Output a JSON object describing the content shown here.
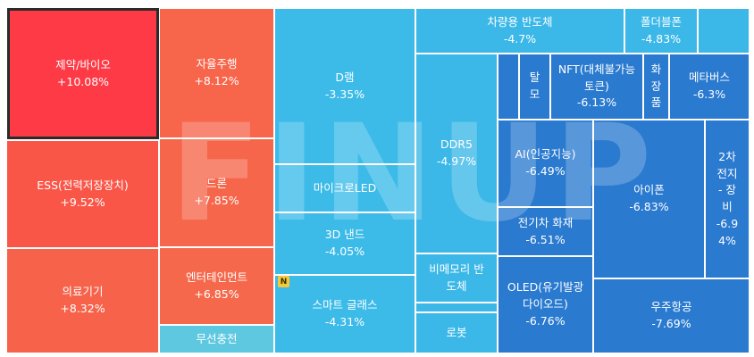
{
  "chart_data": {
    "type": "treemap",
    "items": [
      {
        "name": "제약/바이오",
        "change": "+10.08%",
        "value": 10.08,
        "color": "#fe3a46",
        "selected": true
      },
      {
        "name": "ESS(전력저장장치)",
        "change": "+9.52%",
        "value": 9.52,
        "color": "#fa5648"
      },
      {
        "name": "의료기기",
        "change": "+8.32%",
        "value": 8.32,
        "color": "#f7624a"
      },
      {
        "name": "자율주행",
        "change": "+8.12%",
        "value": 8.12,
        "color": "#f7654b"
      },
      {
        "name": "드론",
        "change": "+7.85%",
        "value": 7.85,
        "color": "#f6664b"
      },
      {
        "name": "엔터테인먼트",
        "change": "+6.85%",
        "value": 6.85,
        "color": "#f5684c"
      },
      {
        "name": "무선충전",
        "change": "",
        "color": "#5ec8e0"
      },
      {
        "name": "D램",
        "change": "-3.35%",
        "value": -3.35,
        "color": "#3cbbe9"
      },
      {
        "name": "마이크로LED",
        "change": "",
        "color": "#3cbbe9"
      },
      {
        "name": "3D 낸드",
        "change": "-4.05%",
        "value": -4.05,
        "color": "#3cbbe9"
      },
      {
        "name": "스마트 글래스",
        "change": "-4.31%",
        "value": -4.31,
        "color": "#3cbbe9"
      },
      {
        "name": "차량용 반도체",
        "change": "-4.7%",
        "value": -4.7,
        "color": "#3cb8e8"
      },
      {
        "name": "폴더블폰",
        "change": "-4.83%",
        "value": -4.83,
        "color": "#3cb8e8"
      },
      {
        "name": "",
        "change": "",
        "color": "#3cb8e8"
      },
      {
        "name": "DDR5",
        "change": "-4.97%",
        "value": -4.97,
        "color": "#3cb8e8"
      },
      {
        "name": "비메모리 반도체",
        "change": "",
        "color": "#3cb8e8"
      },
      {
        "name": "",
        "change": "",
        "color": "#3cb8e8"
      },
      {
        "name": "로봇",
        "change": "",
        "color": "#3cb8e8"
      },
      {
        "name": "",
        "change": "",
        "color": "#2a7ad0"
      },
      {
        "name": "탈모",
        "change": "",
        "color": "#2a7ad0"
      },
      {
        "name": "NFT(대체불가능토큰)",
        "change": "-6.13%",
        "value": -6.13,
        "color": "#2a7ad0"
      },
      {
        "name": "화장품",
        "change": "",
        "color": "#2a7ad0"
      },
      {
        "name": "메타버스",
        "change": "-6.3%",
        "value": -6.3,
        "color": "#2a7ad0"
      },
      {
        "name": "AI(인공지능)",
        "change": "-6.49%",
        "value": -6.49,
        "color": "#2a7ad0"
      },
      {
        "name": "전기차 화재",
        "change": "-6.51%",
        "value": -6.51,
        "color": "#2a7ad0"
      },
      {
        "name": "OLED(유기발광다이오드)",
        "change": "-6.76%",
        "value": -6.76,
        "color": "#2a7ad0"
      },
      {
        "name": "아이폰",
        "change": "-6.83%",
        "value": -6.83,
        "color": "#2a7ad0"
      },
      {
        "name": "2차전지 - 장비",
        "change": "-6.94%",
        "value": -6.94,
        "color": "#2a7ad0"
      },
      {
        "name": "우주항공",
        "change": "-7.69%",
        "value": -7.69,
        "color": "#2a7ad0"
      }
    ]
  },
  "watermark": "FINUP",
  "badge": "N"
}
